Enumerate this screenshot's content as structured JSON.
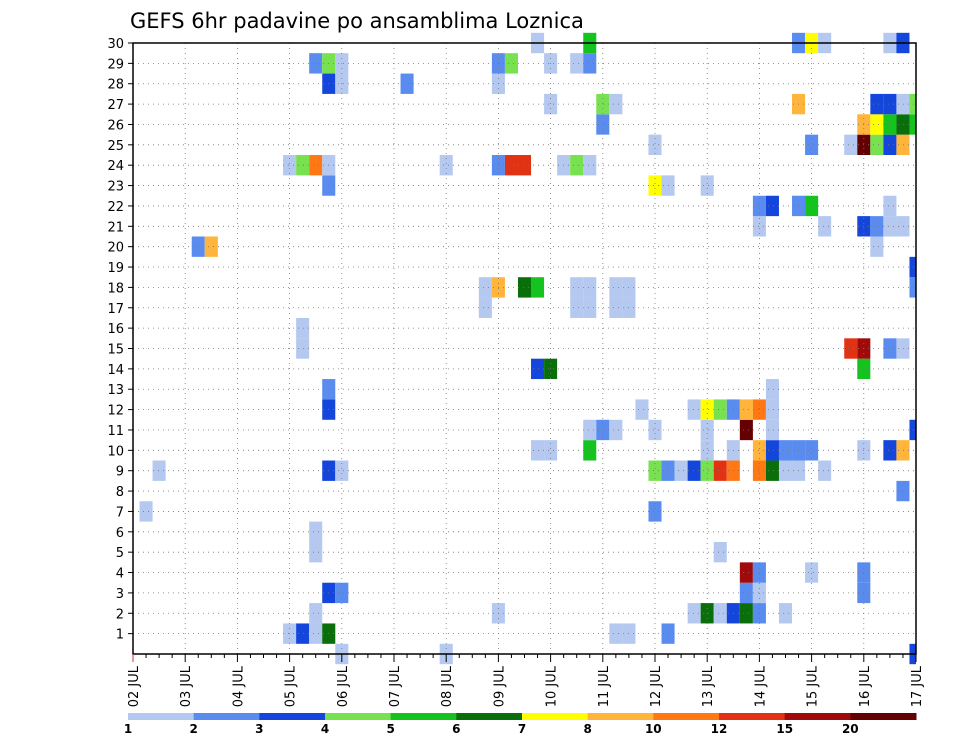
{
  "chart_data": {
    "type": "heatmap",
    "title": "GEFS 6hr padavine po ansamblima Loznica",
    "xlabel": "",
    "ylabel": "",
    "x_tick_labels": [
      "02 JUL",
      "03 JUL",
      "04 JUL",
      "05 JUL",
      "06 JUL",
      "07 JUL",
      "08 JUL",
      "09 JUL",
      "10 JUL",
      "11 JUL",
      "12 JUL",
      "13 JUL",
      "14 JUL",
      "15 JUL",
      "16 JUL",
      "17 JUL"
    ],
    "y_tick_labels": [
      "1",
      "2",
      "3",
      "4",
      "5",
      "6",
      "7",
      "8",
      "9",
      "10",
      "11",
      "12",
      "13",
      "14",
      "15",
      "16",
      "17",
      "18",
      "19",
      "20",
      "21",
      "22",
      "23",
      "24",
      "25",
      "26",
      "27",
      "28",
      "29",
      "30"
    ],
    "x_range": [
      "02 JUL 00Z",
      "17 JUL 00Z"
    ],
    "y_range": [
      0,
      30
    ],
    "time_step_hours": 6,
    "grid": true,
    "grid_style": "dotted",
    "colorbar": {
      "placement": "bottom",
      "labels": [
        "1",
        "2",
        "3",
        "4",
        "5",
        "6",
        "7",
        "8",
        "10",
        "12",
        "15",
        "20"
      ],
      "colors": [
        "#b4c8f0",
        "#5a8cf0",
        "#1446dc",
        "#78e150",
        "#14c31e",
        "#0a6e0a",
        "#ffff00",
        "#ffb43c",
        "#ff7814",
        "#e13214",
        "#a00a0a",
        "#640000"
      ]
    },
    "cells_note": "each cell: [time_step_index_from_02JUL00Z, member, color_class 0-11]",
    "cells": [
      [
        12,
        1,
        0
      ],
      [
        13,
        1,
        2
      ],
      [
        14,
        1,
        0
      ],
      [
        15,
        1,
        5
      ],
      [
        37,
        1,
        0
      ],
      [
        38,
        1,
        0
      ],
      [
        41,
        1,
        1
      ],
      [
        14,
        2,
        0
      ],
      [
        28,
        2,
        0
      ],
      [
        43,
        2,
        0
      ],
      [
        44,
        2,
        5
      ],
      [
        45,
        2,
        0
      ],
      [
        46,
        2,
        2
      ],
      [
        47,
        2,
        5
      ],
      [
        48,
        2,
        1
      ],
      [
        50,
        2,
        0
      ],
      [
        15,
        3,
        2
      ],
      [
        16,
        3,
        1
      ],
      [
        47,
        3,
        1
      ],
      [
        48,
        3,
        0
      ],
      [
        56,
        3,
        1
      ],
      [
        47,
        4,
        10
      ],
      [
        48,
        4,
        1
      ],
      [
        52,
        4,
        0
      ],
      [
        56,
        4,
        1
      ],
      [
        14,
        5,
        0
      ],
      [
        45,
        5,
        0
      ],
      [
        14,
        6,
        0
      ],
      [
        1,
        7,
        0
      ],
      [
        40,
        7,
        1
      ],
      [
        59,
        8,
        1
      ],
      [
        2,
        9,
        0
      ],
      [
        15,
        9,
        2
      ],
      [
        16,
        9,
        0
      ],
      [
        40,
        9,
        3
      ],
      [
        41,
        9,
        1
      ],
      [
        42,
        9,
        0
      ],
      [
        43,
        9,
        2
      ],
      [
        44,
        9,
        3
      ],
      [
        45,
        9,
        9
      ],
      [
        46,
        9,
        8
      ],
      [
        48,
        9,
        8
      ],
      [
        49,
        9,
        5
      ],
      [
        50,
        9,
        0
      ],
      [
        51,
        9,
        0
      ],
      [
        53,
        9,
        0
      ],
      [
        31,
        10,
        0
      ],
      [
        32,
        10,
        0
      ],
      [
        35,
        10,
        4
      ],
      [
        44,
        10,
        0
      ],
      [
        46,
        10,
        0
      ],
      [
        48,
        10,
        7
      ],
      [
        49,
        10,
        2
      ],
      [
        50,
        10,
        1
      ],
      [
        51,
        10,
        1
      ],
      [
        52,
        10,
        1
      ],
      [
        56,
        10,
        0
      ],
      [
        58,
        10,
        2
      ],
      [
        59,
        10,
        7
      ],
      [
        35,
        11,
        0
      ],
      [
        36,
        11,
        1
      ],
      [
        37,
        11,
        0
      ],
      [
        40,
        11,
        0
      ],
      [
        44,
        11,
        0
      ],
      [
        47,
        11,
        11
      ],
      [
        49,
        11,
        0
      ],
      [
        60,
        11,
        2
      ],
      [
        15,
        12,
        2
      ],
      [
        39,
        12,
        0
      ],
      [
        43,
        12,
        0
      ],
      [
        44,
        12,
        6
      ],
      [
        45,
        12,
        3
      ],
      [
        46,
        12,
        1
      ],
      [
        47,
        12,
        7
      ],
      [
        48,
        12,
        8
      ],
      [
        49,
        12,
        0
      ],
      [
        15,
        13,
        1
      ],
      [
        49,
        13,
        0
      ],
      [
        31,
        14,
        2
      ],
      [
        32,
        14,
        5
      ],
      [
        56,
        14,
        4
      ],
      [
        13,
        15,
        0
      ],
      [
        55,
        15,
        9
      ],
      [
        56,
        15,
        10
      ],
      [
        58,
        15,
        1
      ],
      [
        59,
        15,
        0
      ],
      [
        13,
        16,
        0
      ],
      [
        27,
        18,
        0
      ],
      [
        28,
        18,
        7
      ],
      [
        30,
        18,
        5
      ],
      [
        31,
        18,
        4
      ],
      [
        34,
        18,
        0
      ],
      [
        35,
        18,
        0
      ],
      [
        37,
        18,
        0
      ],
      [
        38,
        18,
        0
      ],
      [
        27,
        17,
        0
      ],
      [
        34,
        17,
        0
      ],
      [
        35,
        17,
        0
      ],
      [
        37,
        17,
        0
      ],
      [
        38,
        17,
        0
      ],
      [
        60,
        18,
        1
      ],
      [
        60,
        19,
        2
      ],
      [
        5,
        20,
        1
      ],
      [
        6,
        20,
        7
      ],
      [
        57,
        20,
        0
      ],
      [
        48,
        21,
        0
      ],
      [
        53,
        21,
        0
      ],
      [
        56,
        21,
        2
      ],
      [
        57,
        21,
        1
      ],
      [
        58,
        21,
        0
      ],
      [
        59,
        21,
        0
      ],
      [
        48,
        22,
        1
      ],
      [
        49,
        22,
        2
      ],
      [
        51,
        22,
        1
      ],
      [
        52,
        22,
        4
      ],
      [
        58,
        22,
        0
      ],
      [
        15,
        23,
        1
      ],
      [
        40,
        23,
        6
      ],
      [
        41,
        23,
        0
      ],
      [
        44,
        23,
        0
      ],
      [
        12,
        24,
        0
      ],
      [
        13,
        24,
        3
      ],
      [
        14,
        24,
        8
      ],
      [
        15,
        24,
        0
      ],
      [
        24,
        24,
        0
      ],
      [
        28,
        24,
        1
      ],
      [
        29,
        24,
        9
      ],
      [
        30,
        24,
        9
      ],
      [
        33,
        24,
        0
      ],
      [
        34,
        24,
        3
      ],
      [
        35,
        24,
        0
      ],
      [
        40,
        25,
        0
      ],
      [
        52,
        25,
        1
      ],
      [
        55,
        25,
        0
      ],
      [
        56,
        25,
        11
      ],
      [
        57,
        25,
        3
      ],
      [
        58,
        25,
        2
      ],
      [
        59,
        25,
        7
      ],
      [
        36,
        26,
        1
      ],
      [
        56,
        26,
        7
      ],
      [
        57,
        26,
        6
      ],
      [
        58,
        26,
        4
      ],
      [
        59,
        26,
        5
      ],
      [
        60,
        26,
        4
      ],
      [
        32,
        27,
        0
      ],
      [
        36,
        27,
        3
      ],
      [
        37,
        27,
        0
      ],
      [
        51,
        27,
        7
      ],
      [
        57,
        27,
        2
      ],
      [
        58,
        27,
        2
      ],
      [
        59,
        27,
        0
      ],
      [
        60,
        27,
        3
      ],
      [
        15,
        28,
        2
      ],
      [
        16,
        28,
        0
      ],
      [
        21,
        28,
        1
      ],
      [
        28,
        28,
        0
      ],
      [
        14,
        29,
        1
      ],
      [
        15,
        29,
        3
      ],
      [
        16,
        29,
        0
      ],
      [
        28,
        29,
        1
      ],
      [
        29,
        29,
        3
      ],
      [
        32,
        29,
        0
      ],
      [
        34,
        29,
        0
      ],
      [
        35,
        29,
        1
      ],
      [
        31,
        30,
        0
      ],
      [
        35,
        30,
        4
      ],
      [
        51,
        30,
        1
      ],
      [
        52,
        30,
        6
      ],
      [
        53,
        30,
        0
      ],
      [
        58,
        30,
        0
      ],
      [
        59,
        30,
        2
      ],
      [
        16,
        0,
        0
      ],
      [
        24,
        0,
        0
      ],
      [
        60,
        0,
        2
      ]
    ]
  }
}
